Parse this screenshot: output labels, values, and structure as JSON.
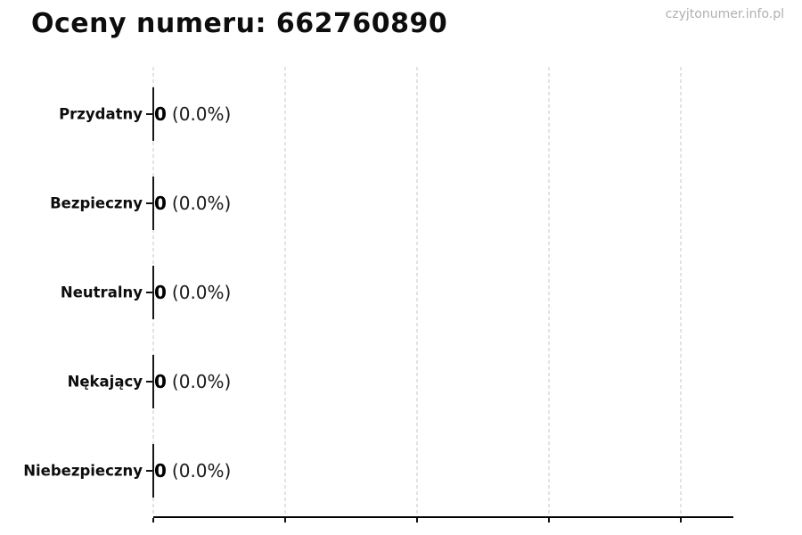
{
  "title": "Oceny numeru: 662760890",
  "watermark": "czyjtonumer.info.pl",
  "colors": {
    "title": "#0d0d0d",
    "watermark": "#b0b0b0",
    "gridline": "#c7c7c7",
    "axis": "#000000",
    "bar_edge": "#161616",
    "background": "#ffffff"
  },
  "chart_data": {
    "type": "bar",
    "orientation": "horizontal",
    "title": "Oceny numeru: 662760890",
    "xlabel": "",
    "ylabel": "",
    "categories": [
      "Przydatny",
      "Bezpieczny",
      "Neutralny",
      "Nękający",
      "Niebezpieczny"
    ],
    "values": [
      0,
      0,
      0,
      0,
      0
    ],
    "percentages": [
      0.0,
      0.0,
      0.0,
      0.0,
      0.0
    ],
    "rows": [
      {
        "label": "Przydatny",
        "count_label": "0",
        "percent_label": "(0.0%)",
        "value": 0
      },
      {
        "label": "Bezpieczny",
        "count_label": "0",
        "percent_label": "(0.0%)",
        "value": 0
      },
      {
        "label": "Neutralny",
        "count_label": "0",
        "percent_label": "(0.0%)",
        "value": 0
      },
      {
        "label": "Nękający",
        "count_label": "0",
        "percent_label": "(0.0%)",
        "value": 0
      },
      {
        "label": "Niebezpieczny",
        "count_label": "0",
        "percent_label": "(0.0%)",
        "value": 0
      }
    ],
    "xlim": [
      0,
      1.1
    ],
    "xticks": [
      0,
      0.25,
      0.5,
      0.75,
      1.0
    ],
    "xtick_labels_visible": false,
    "grid": "vertical-dashed",
    "legend": "none"
  }
}
